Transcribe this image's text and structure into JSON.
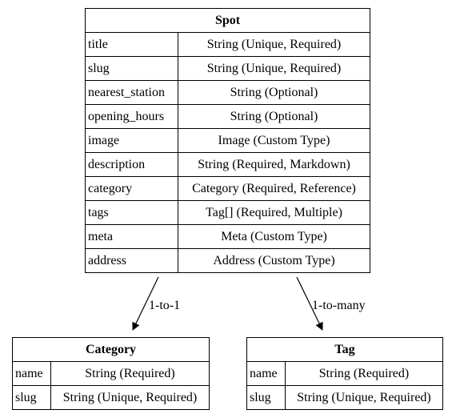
{
  "spot": {
    "title": "Spot",
    "fields": [
      {
        "name": "title",
        "type": "String (Unique, Required)"
      },
      {
        "name": "slug",
        "type": "String (Unique, Required)"
      },
      {
        "name": "nearest_station",
        "type": "String (Optional)"
      },
      {
        "name": "opening_hours",
        "type": "String (Optional)"
      },
      {
        "name": "image",
        "type": "Image (Custom Type)"
      },
      {
        "name": "description",
        "type": "String (Required, Markdown)"
      },
      {
        "name": "category",
        "type": "Category (Required, Reference)"
      },
      {
        "name": "tags",
        "type": "Tag[] (Required, Multiple)"
      },
      {
        "name": "meta",
        "type": "Meta (Custom Type)"
      },
      {
        "name": "address",
        "type": "Address (Custom Type)"
      }
    ]
  },
  "category": {
    "title": "Category",
    "fields": [
      {
        "name": "name",
        "type": "String (Required)"
      },
      {
        "name": "slug",
        "type": "String (Unique, Required)"
      }
    ]
  },
  "tag": {
    "title": "Tag",
    "fields": [
      {
        "name": "name",
        "type": "String (Required)"
      },
      {
        "name": "slug",
        "type": "String (Unique, Required)"
      }
    ]
  },
  "edges": [
    {
      "label": "1-to-1"
    },
    {
      "label": "1-to-many"
    }
  ]
}
